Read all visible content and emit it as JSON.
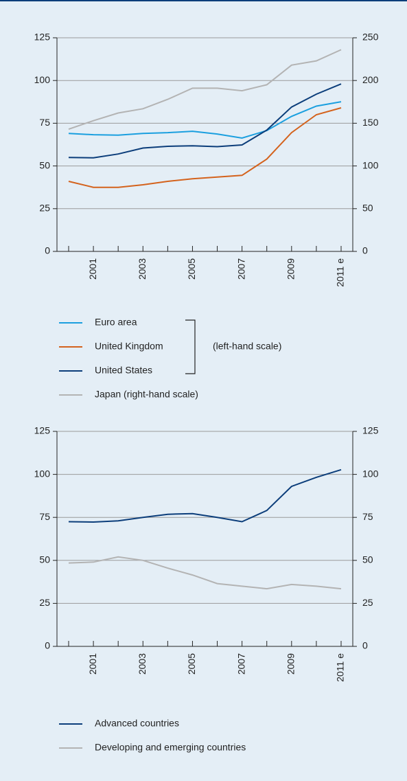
{
  "chart_data": [
    {
      "type": "line",
      "categories": [
        null,
        "2001",
        null,
        "2003",
        null,
        "2005",
        null,
        "2007",
        null,
        "2009",
        null,
        "2011 e"
      ],
      "ylim": [
        0,
        125
      ],
      "yticks": [
        0,
        25,
        50,
        75,
        100,
        125
      ],
      "y2lim": [
        0,
        250
      ],
      "y2ticks": [
        0,
        50,
        100,
        150,
        200,
        250
      ],
      "grid": true,
      "annotation": "(left-hand scale)",
      "series": [
        {
          "name": "Euro area",
          "color": "#1a9fdf",
          "values": [
            69,
            68.3,
            68,
            69,
            69.5,
            70.3,
            68.7,
            66.3,
            70.7,
            79,
            85,
            87.6
          ]
        },
        {
          "name": "United Kingdom",
          "color": "#d4621c",
          "values": [
            41,
            37.5,
            37.5,
            39,
            41,
            42.5,
            43.5,
            44.5,
            54,
            69.5,
            80,
            84
          ]
        },
        {
          "name": "United States",
          "color": "#0b3d7a",
          "values": [
            55,
            54.8,
            57,
            60.5,
            61.5,
            61.8,
            61.3,
            62.3,
            71,
            84.5,
            92,
            98
          ]
        },
        {
          "name": "Japan (right-hand scale)",
          "color": "#b3b3b3",
          "axis": "y2",
          "values": [
            143,
            153,
            162,
            167,
            178,
            191,
            191,
            188,
            195,
            218,
            223,
            236
          ]
        }
      ]
    },
    {
      "type": "line",
      "categories": [
        null,
        "2001",
        null,
        "2003",
        null,
        "2005",
        null,
        "2007",
        null,
        "2009",
        null,
        "2011 e"
      ],
      "ylim": [
        0,
        125
      ],
      "yticks": [
        0,
        25,
        50,
        75,
        100,
        125
      ],
      "y2lim": [
        0,
        125
      ],
      "y2ticks": [
        0,
        25,
        50,
        75,
        100,
        125
      ],
      "grid": true,
      "series": [
        {
          "name": "Advanced countries",
          "color": "#0b3d7a",
          "values": [
            72.5,
            72.3,
            73,
            75,
            76.8,
            77.2,
            75,
            72.5,
            79,
            93,
            98.3,
            102.7
          ]
        },
        {
          "name": "Developing and emerging countries",
          "color": "#b3b3b3",
          "values": [
            48.5,
            49,
            52,
            50,
            45.5,
            41.5,
            36.5,
            35,
            33.5,
            36,
            35,
            33.5
          ]
        }
      ]
    }
  ]
}
